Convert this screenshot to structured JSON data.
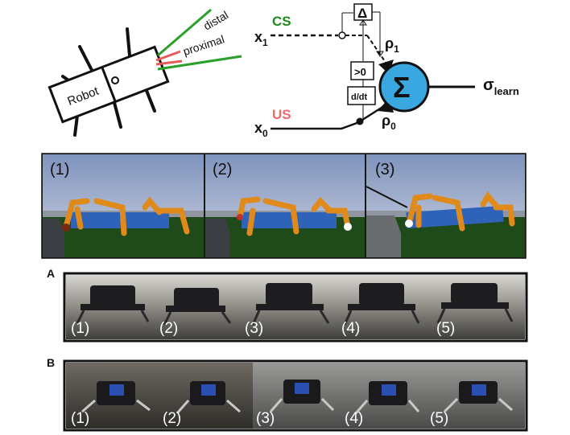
{
  "diagram": {
    "robot_label": "Robot",
    "distal_label": "distal",
    "proximal_label": "proximal",
    "cs_label": "CS",
    "us_label": "US",
    "x1_main": "x",
    "x1_sub": "1",
    "x0_main": "x",
    "x0_sub": "0",
    "rho1_main": "ρ",
    "rho1_sub": "1",
    "rho0_main": "ρ",
    "rho0_sub": "0",
    "delta_label": "Δ",
    "gt0_label": ">0",
    "ddt_label": "d/dt",
    "sigma_symbol": "Σ",
    "sigma_learn_main": "σ",
    "sigma_learn_sub": "learn",
    "colors": {
      "cs": "#1e8a1e",
      "us": "#ec6a6a",
      "sigma_fill": "#3aa7e0",
      "distal": "#2aa02a",
      "proximal": "#e85a5a"
    }
  },
  "sim_panels": [
    {
      "label": "(1)"
    },
    {
      "label": "(2)"
    },
    {
      "label": "(3)"
    }
  ],
  "row_a": {
    "label": "A",
    "photos": [
      {
        "label": "(1)"
      },
      {
        "label": "(2)"
      },
      {
        "label": "(3)"
      },
      {
        "label": "(4)"
      },
      {
        "label": "(5)"
      }
    ]
  },
  "row_b": {
    "label": "B",
    "photos": [
      {
        "label": "(1)"
      },
      {
        "label": "(2)"
      },
      {
        "label": "(3)"
      },
      {
        "label": "(4)"
      },
      {
        "label": "(5)"
      }
    ]
  }
}
